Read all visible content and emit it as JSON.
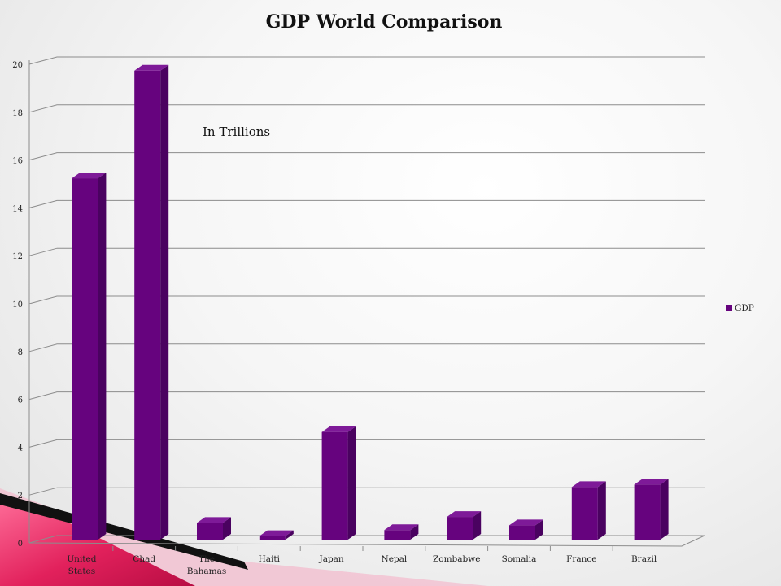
{
  "chart_data": {
    "type": "bar",
    "title": "GDP World Comparison",
    "annotation": "In Trillions",
    "categories": [
      "United States",
      "Chad",
      "The Bahamas",
      "Haiti",
      "Japan",
      "Nepal",
      "Zombabwe",
      "Somalia",
      "France",
      "Brazil"
    ],
    "category_lines": [
      [
        "United",
        "States"
      ],
      [
        "Chad"
      ],
      [
        "The",
        "Bahamas"
      ],
      [
        "Haiti"
      ],
      [
        "Japan"
      ],
      [
        "Nepal"
      ],
      [
        "Zombabwe"
      ],
      [
        "Somalia"
      ],
      [
        "France"
      ],
      [
        "Brazil"
      ]
    ],
    "series": [
      {
        "name": "GDP",
        "values": [
          15.1,
          19.6,
          0.7,
          0.15,
          4.5,
          0.4,
          0.95,
          0.6,
          2.2,
          2.3
        ]
      }
    ],
    "ylim": [
      0,
      20
    ],
    "yticks": [
      0,
      2,
      4,
      6,
      8,
      10,
      12,
      14,
      16,
      18,
      20
    ],
    "grid": true,
    "legend_position": "right",
    "style": "3d-column",
    "colors": {
      "bar_front": "#66037E",
      "bar_side": "#4A0260",
      "bar_top": "#7E1A98",
      "grid": "#8c8c8c",
      "accent": "#E0205A"
    }
  }
}
